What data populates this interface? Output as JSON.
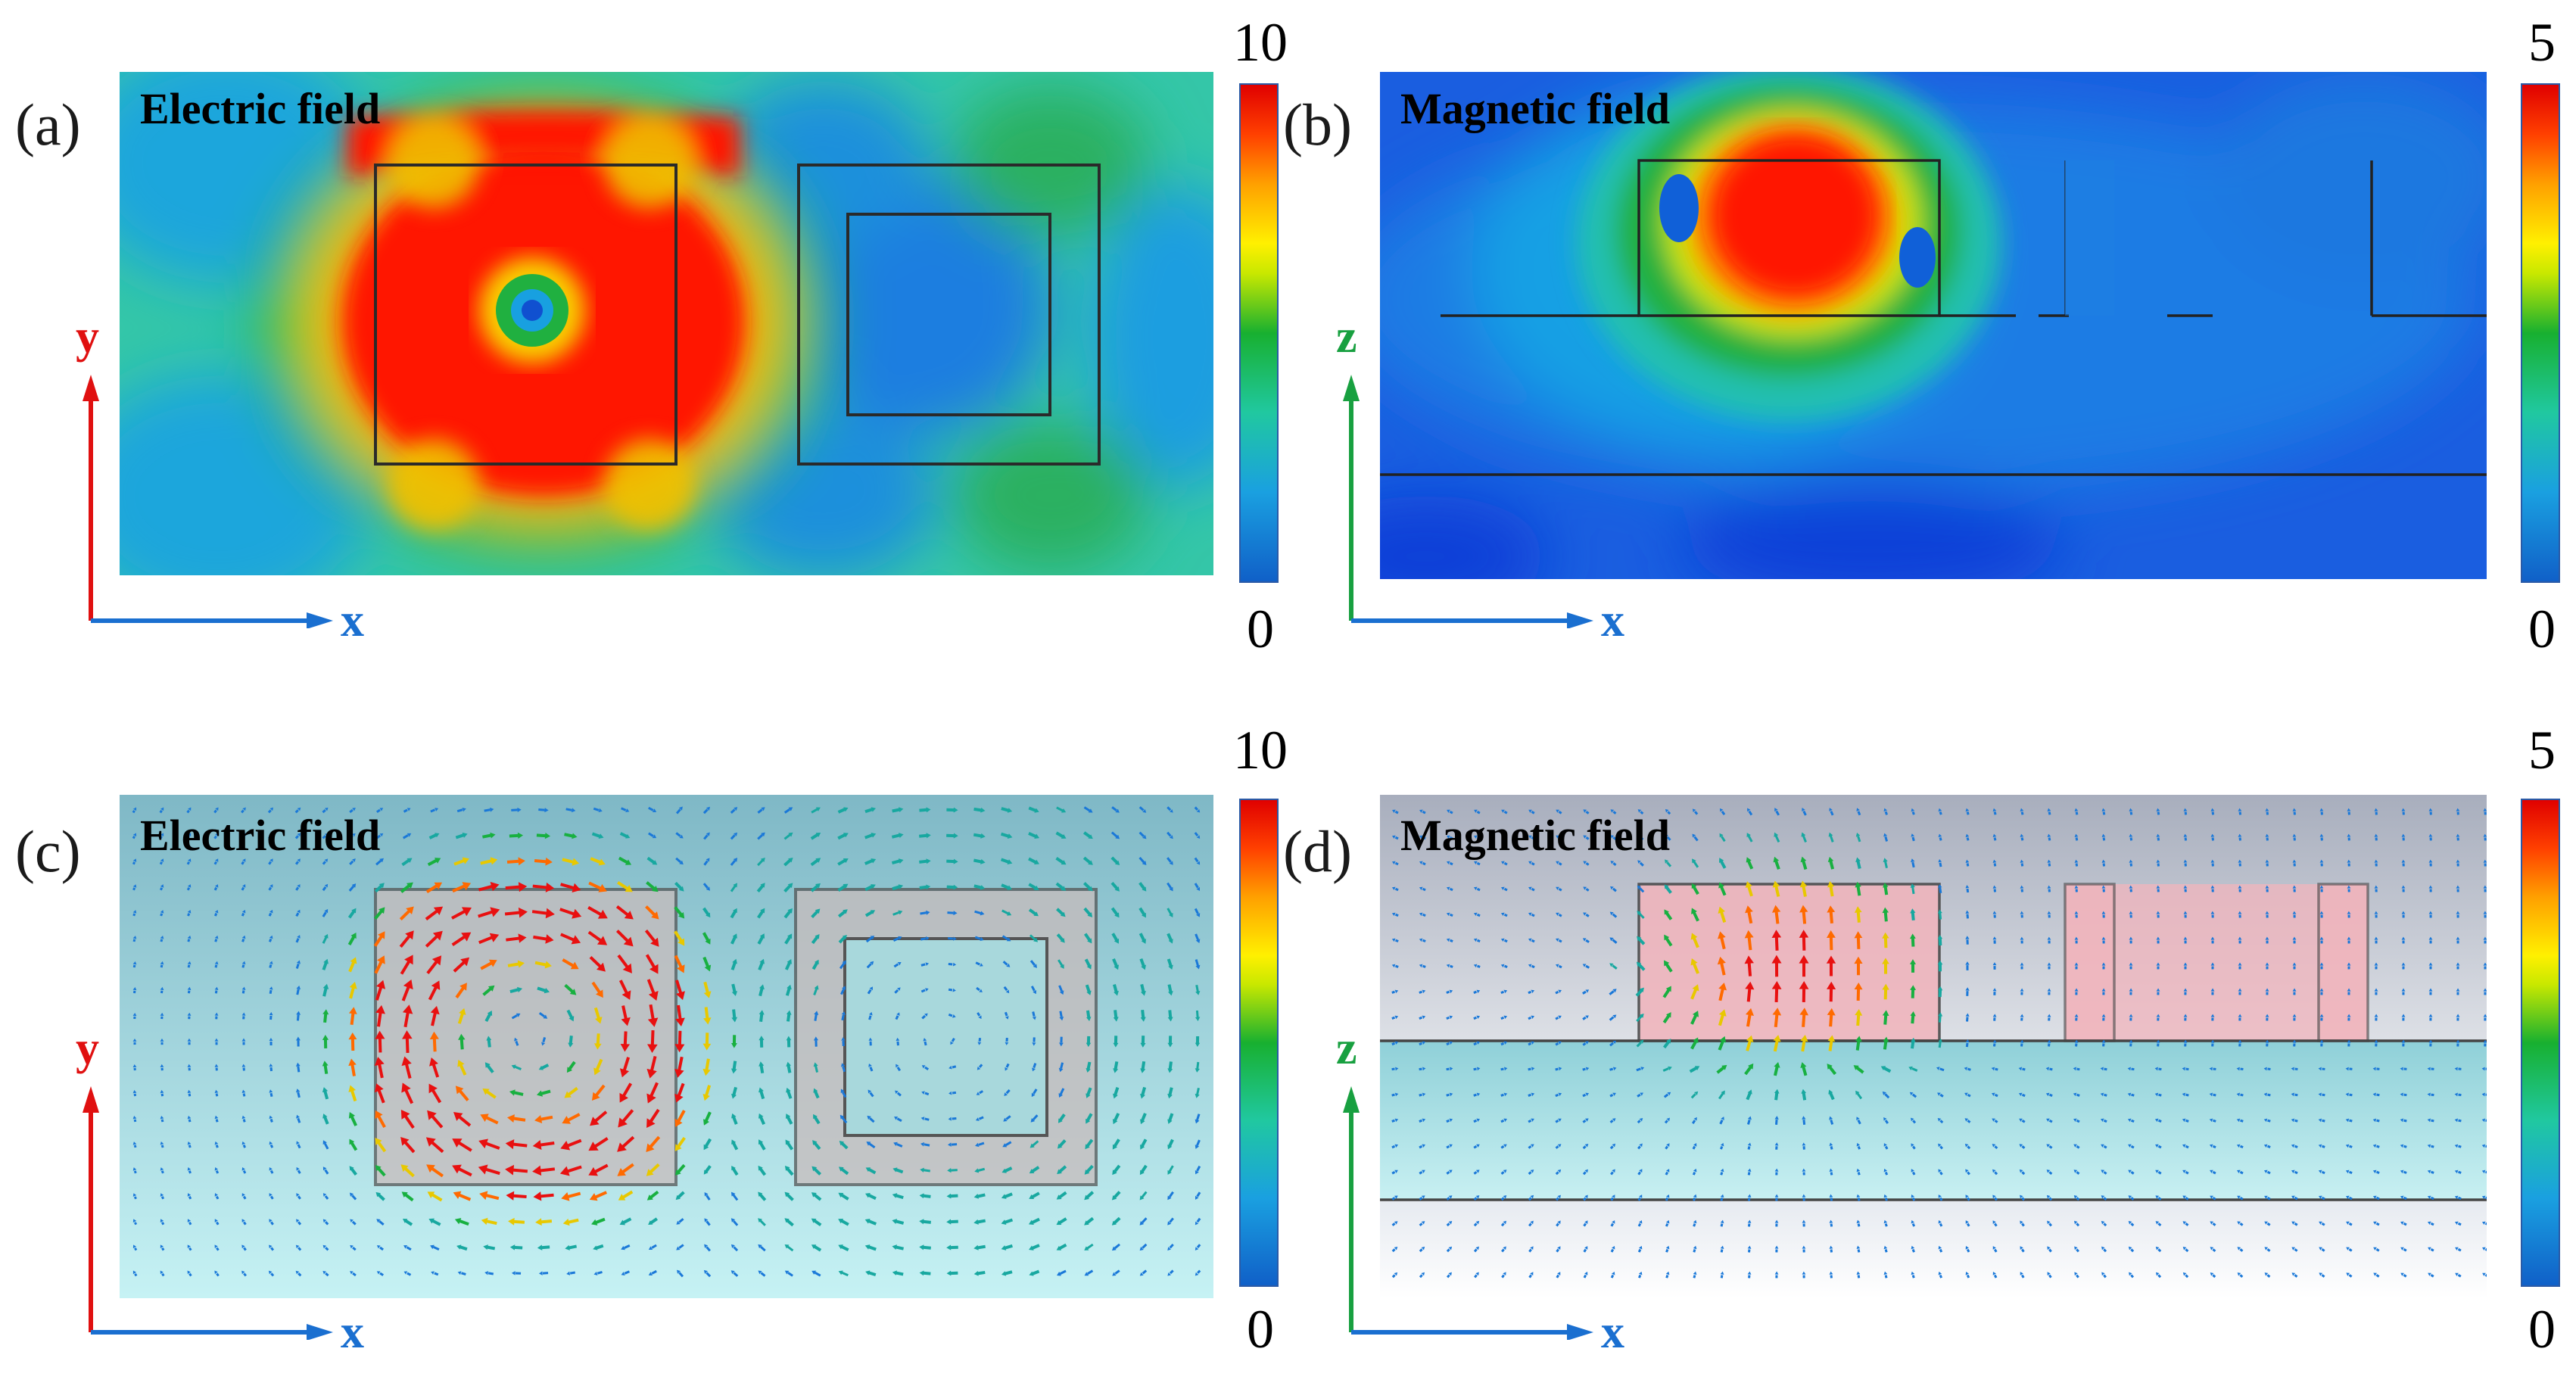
{
  "panels": [
    {
      "label": "(a)",
      "title": "Electric field",
      "axes": {
        "vertical": "y",
        "horizontal": "x"
      },
      "colorbar": {
        "max": "10",
        "min": "0"
      }
    },
    {
      "label": "(b)",
      "title": "Magnetic field",
      "axes": {
        "vertical": "z",
        "horizontal": "x"
      },
      "colorbar": {
        "max": "5",
        "min": "0"
      }
    },
    {
      "label": "(c)",
      "title": "Electric field",
      "axes": {
        "vertical": "y",
        "horizontal": "x"
      },
      "colorbar": {
        "max": "10",
        "min": "0"
      }
    },
    {
      "label": "(d)",
      "title": "Magnetic field",
      "axes": {
        "vertical": "z",
        "horizontal": "x"
      },
      "colorbar": {
        "max": "5",
        "min": "0"
      }
    }
  ],
  "colors": {
    "y_axis": "#e01010",
    "z_axis": "#18a040",
    "x_axis": "#1a6fd0",
    "field_high": "#ff0000",
    "field_low": "#1060d0"
  }
}
